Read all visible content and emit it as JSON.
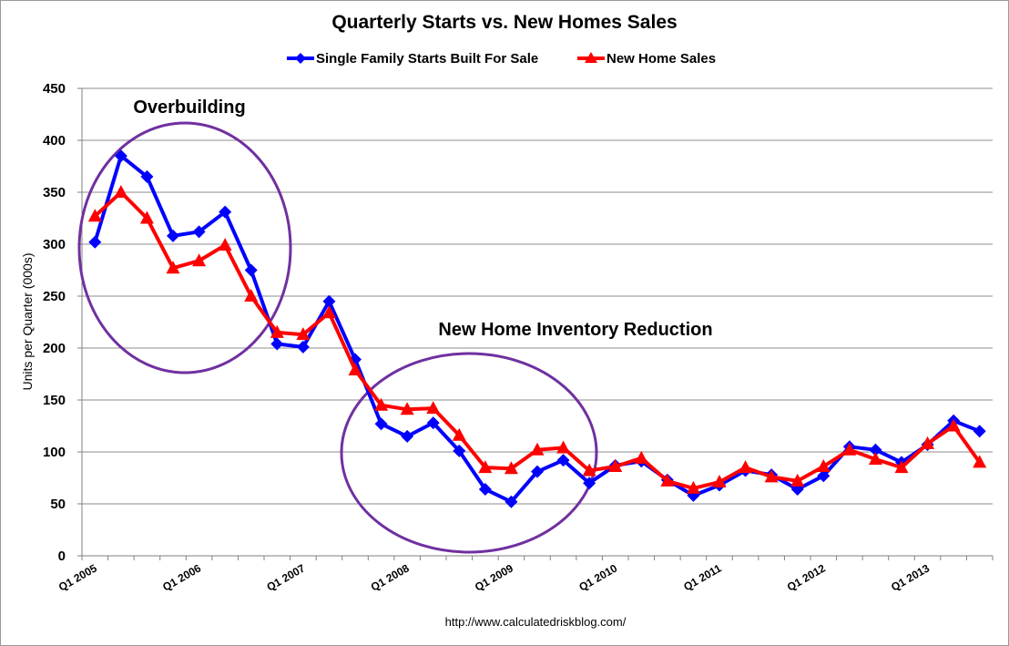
{
  "chart_data": {
    "type": "line",
    "title": "Quarterly Starts vs. New Homes Sales",
    "xlabel": "",
    "ylabel": "Units per Quarter (000s)",
    "ylim": [
      0,
      450
    ],
    "yticks": [
      0,
      50,
      100,
      150,
      200,
      250,
      300,
      350,
      400,
      450
    ],
    "grid": true,
    "legend_position": "top-center",
    "x_tick_labels": [
      "Q1 2005",
      "Q1 2006",
      "Q1 2007",
      "Q1 2008",
      "Q1 2009",
      "Q1 2010",
      "Q1 2011",
      "Q1 2012",
      "Q1 2013"
    ],
    "categories": [
      "Q1 2005",
      "Q2 2005",
      "Q3 2005",
      "Q4 2005",
      "Q1 2006",
      "Q2 2006",
      "Q3 2006",
      "Q4 2006",
      "Q1 2007",
      "Q2 2007",
      "Q3 2007",
      "Q4 2007",
      "Q1 2008",
      "Q2 2008",
      "Q3 2008",
      "Q4 2008",
      "Q1 2009",
      "Q2 2009",
      "Q3 2009",
      "Q4 2009",
      "Q1 2010",
      "Q2 2010",
      "Q3 2010",
      "Q4 2010",
      "Q1 2011",
      "Q2 2011",
      "Q3 2011",
      "Q4 2011",
      "Q1 2012",
      "Q2 2012",
      "Q3 2012",
      "Q4 2012",
      "Q1 2013",
      "Q2 2013",
      "Q3 2013"
    ],
    "series": [
      {
        "name": "Single Family Starts Built For Sale",
        "color": "#0000ff",
        "marker": "diamond",
        "values": [
          302,
          385,
          365,
          308,
          312,
          331,
          275,
          204,
          201,
          245,
          189,
          127,
          115,
          128,
          101,
          64,
          52,
          81,
          92,
          70,
          87,
          91,
          73,
          58,
          68,
          82,
          78,
          64,
          77,
          105,
          102,
          90,
          107,
          130,
          120
        ]
      },
      {
        "name": "New Home Sales",
        "color": "#ff0000",
        "marker": "triangle",
        "values": [
          327,
          350,
          325,
          277,
          284,
          299,
          250,
          215,
          213,
          234,
          179,
          145,
          141,
          142,
          116,
          85,
          84,
          102,
          104,
          82,
          86,
          94,
          72,
          65,
          71,
          85,
          76,
          72,
          86,
          102,
          93,
          85,
          108,
          125,
          90
        ]
      }
    ],
    "annotations": [
      "Overbuilding",
      "New Home Inventory Reduction"
    ],
    "source": "http://www.calculatedriskblog.com/"
  }
}
